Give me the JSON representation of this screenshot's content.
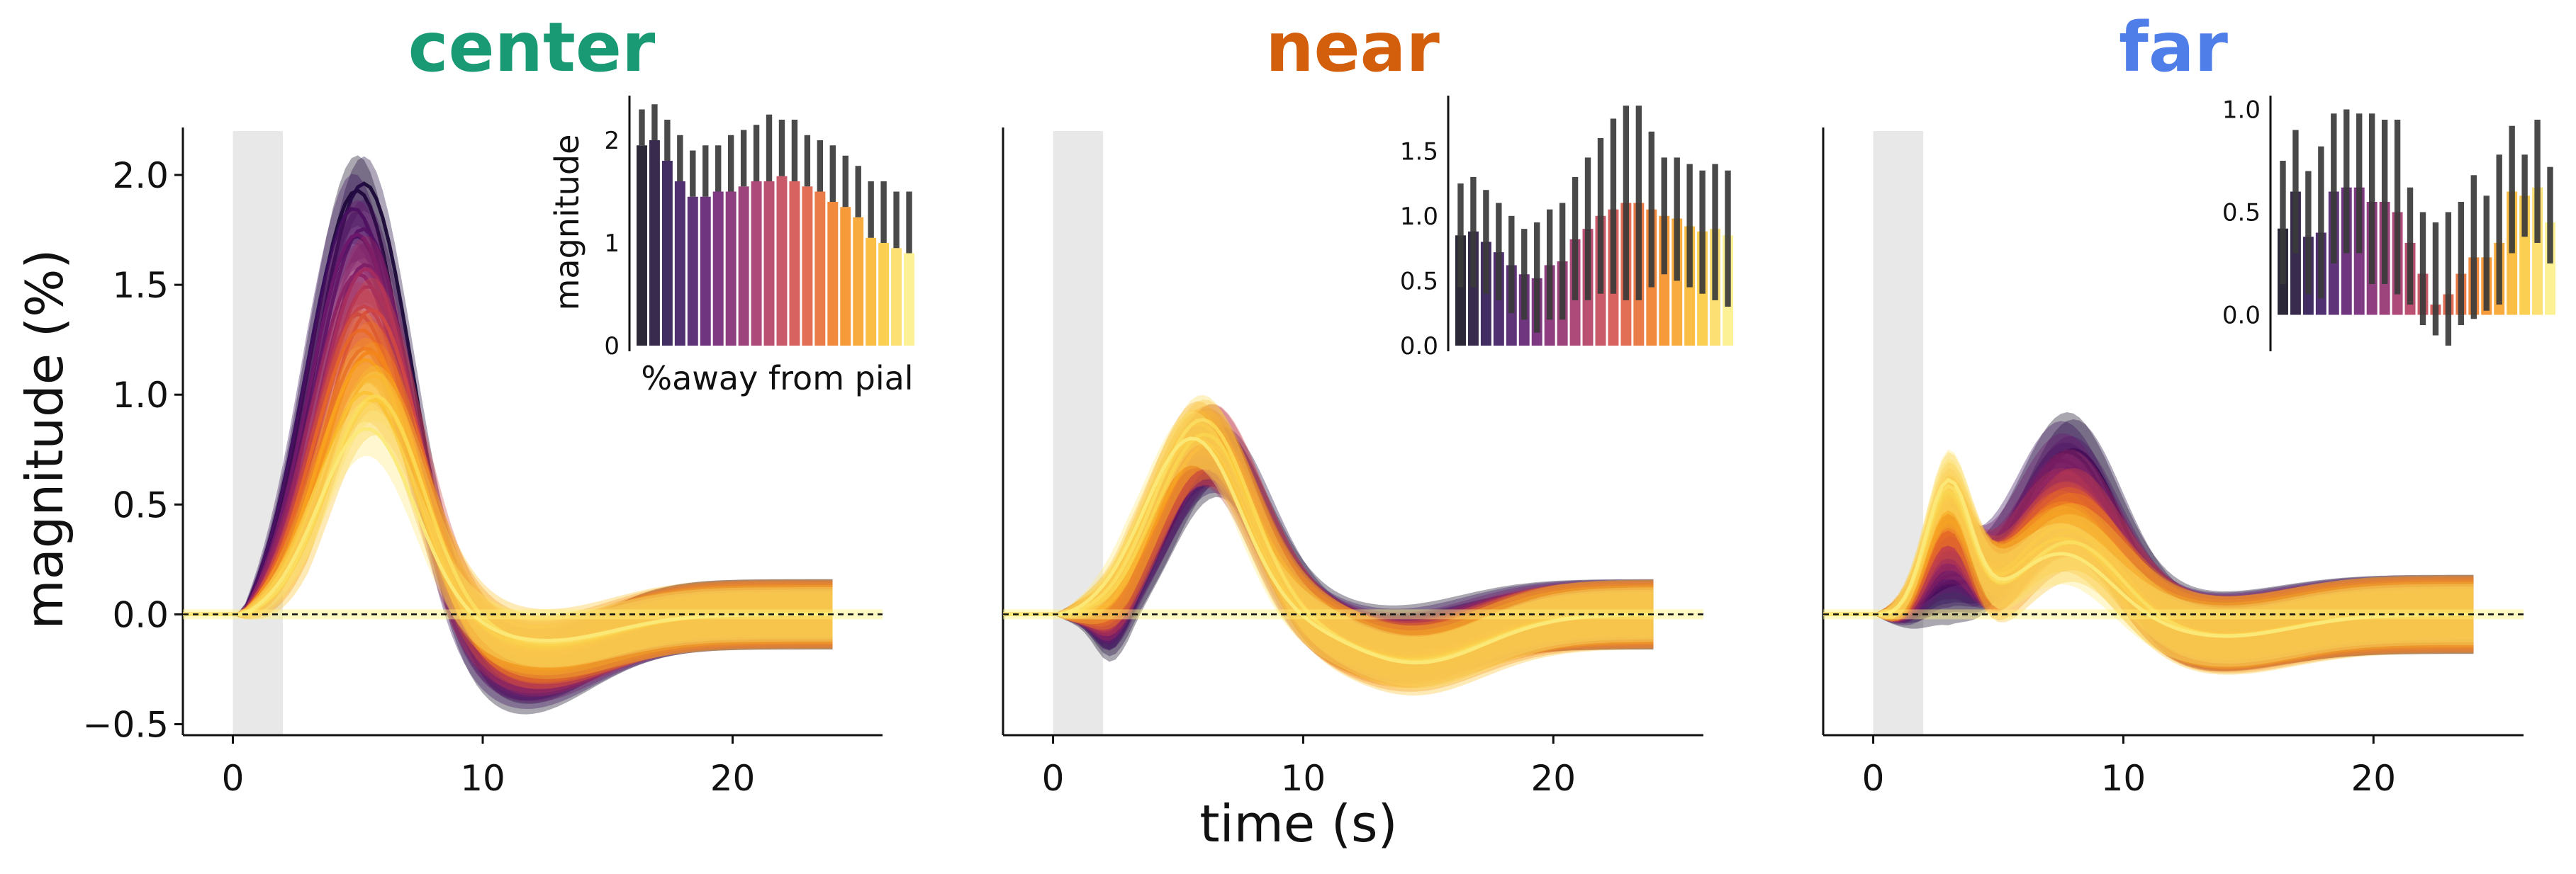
{
  "figure": {
    "ylabel": "magnitude (%)",
    "xlabel": "time (s)"
  },
  "chart_data": [
    {
      "type": "line",
      "title": "center",
      "title_color": "#1a9a74",
      "xlim": [
        -2,
        26
      ],
      "ylim": [
        -0.55,
        2.2
      ],
      "xticks": [
        0,
        10,
        20
      ],
      "yticks": [
        -0.5,
        0.0,
        0.5,
        1.0,
        1.5,
        2.0
      ],
      "ytick_labels": [
        "−0.5",
        "0.0",
        "0.5",
        "1.0",
        "1.5",
        "2.0"
      ],
      "stimulus_window": [
        0,
        2
      ],
      "series_profile": {
        "peak_time": [
          5.0,
          5.6
        ],
        "peak_amp": [
          1.95,
          0.9
        ],
        "undershoot_time": [
          11.5,
          12.5
        ],
        "undershoot_amp": [
          -0.3,
          -0.12
        ],
        "band_halfwidth": 0.08
      },
      "inset": {
        "ylabel": "magnitude",
        "xlabel": "%away from pial",
        "ylim": [
          0,
          2.4
        ],
        "yticks": [
          0,
          1,
          2
        ],
        "ytick_labels": [
          "0",
          "1",
          "2"
        ],
        "values": [
          1.95,
          2.0,
          1.8,
          1.6,
          1.45,
          1.45,
          1.5,
          1.5,
          1.55,
          1.6,
          1.6,
          1.65,
          1.6,
          1.55,
          1.5,
          1.4,
          1.35,
          1.25,
          1.05,
          1.0,
          0.95,
          0.9
        ],
        "error_high": [
          2.3,
          2.35,
          2.2,
          2.05,
          1.9,
          1.95,
          1.95,
          2.05,
          2.1,
          2.15,
          2.25,
          2.2,
          2.2,
          2.05,
          2.0,
          1.95,
          1.85,
          1.75,
          1.6,
          1.6,
          1.5,
          1.5
        ]
      }
    },
    {
      "type": "line",
      "title": "near",
      "title_color": "#d35f0c",
      "xlim": [
        -2,
        26
      ],
      "ylim": [
        -0.55,
        2.2
      ],
      "xticks": [
        0,
        10,
        20
      ],
      "stimulus_window": [
        0,
        2
      ],
      "series_profile": {
        "peak_time": [
          6.6,
          5.8
        ],
        "peak_amp": [
          0.7,
          0.85
        ],
        "undershoot_time": [
          13.5,
          14.5
        ],
        "undershoot_amp": [
          -0.12,
          -0.22
        ],
        "band_halfwidth": 0.08,
        "dip_amp": [
          -0.15,
          0.0
        ]
      },
      "inset": {
        "ylim": [
          0,
          1.9
        ],
        "yticks": [
          0.0,
          0.5,
          1.0,
          1.5
        ],
        "ytick_labels": [
          "0.0",
          "0.5",
          "1.0",
          "1.5"
        ],
        "values": [
          0.85,
          0.88,
          0.8,
          0.72,
          0.62,
          0.55,
          0.52,
          0.62,
          0.65,
          0.82,
          0.9,
          1.0,
          1.05,
          1.1,
          1.1,
          1.05,
          1.0,
          0.98,
          0.92,
          0.88,
          0.9,
          0.85
        ],
        "error_high": [
          1.25,
          1.3,
          1.2,
          1.1,
          1.0,
          0.9,
          0.95,
          1.05,
          1.1,
          1.3,
          1.45,
          1.6,
          1.75,
          1.85,
          1.85,
          1.65,
          1.45,
          1.45,
          1.4,
          1.35,
          1.4,
          1.35
        ],
        "error_low": [
          0.45,
          0.45,
          0.4,
          0.35,
          0.25,
          0.2,
          0.1,
          0.2,
          0.2,
          0.35,
          0.35,
          0.4,
          0.4,
          0.35,
          0.35,
          0.45,
          0.55,
          0.5,
          0.45,
          0.4,
          0.35,
          0.3
        ]
      }
    },
    {
      "type": "line",
      "title": "far",
      "title_color": "#4f7ee8",
      "xlim": [
        -2,
        26
      ],
      "ylim": [
        -0.55,
        2.2
      ],
      "xticks": [
        0,
        10,
        20
      ],
      "stimulus_window": [
        0,
        2
      ],
      "series_profile": {
        "peak_time": [
          7.8,
          7.8
        ],
        "peak_amp": [
          0.75,
          0.3
        ],
        "early_time": [
          3.0,
          3.0
        ],
        "early_amp": [
          0.1,
          0.6
        ],
        "undershoot_time": [
          13.5,
          14
        ],
        "undershoot_amp": [
          -0.08,
          -0.1
        ],
        "band_halfwidth": 0.09
      },
      "inset": {
        "ylim": [
          -0.15,
          1.05
        ],
        "yticks": [
          0.0,
          0.5,
          1.0
        ],
        "ytick_labels": [
          "0.0",
          "0.5",
          "1.0"
        ],
        "values": [
          0.42,
          0.6,
          0.38,
          0.4,
          0.6,
          0.62,
          0.62,
          0.55,
          0.55,
          0.5,
          0.35,
          0.2,
          0.05,
          0.1,
          0.2,
          0.28,
          0.28,
          0.35,
          0.6,
          0.58,
          0.62,
          0.45
        ],
        "error_high": [
          0.75,
          0.9,
          0.7,
          0.82,
          0.98,
          1.0,
          0.98,
          0.98,
          0.95,
          0.95,
          0.62,
          0.5,
          0.45,
          0.5,
          0.55,
          0.68,
          0.58,
          0.78,
          0.92,
          0.78,
          0.95,
          0.72
        ],
        "error_low": [
          0.15,
          0.3,
          0.1,
          0.08,
          0.25,
          0.3,
          0.3,
          0.15,
          0.15,
          0.1,
          0.05,
          -0.05,
          -0.1,
          -0.15,
          -0.05,
          -0.02,
          0.02,
          0.05,
          0.3,
          0.38,
          0.35,
          0.25
        ]
      }
    }
  ]
}
